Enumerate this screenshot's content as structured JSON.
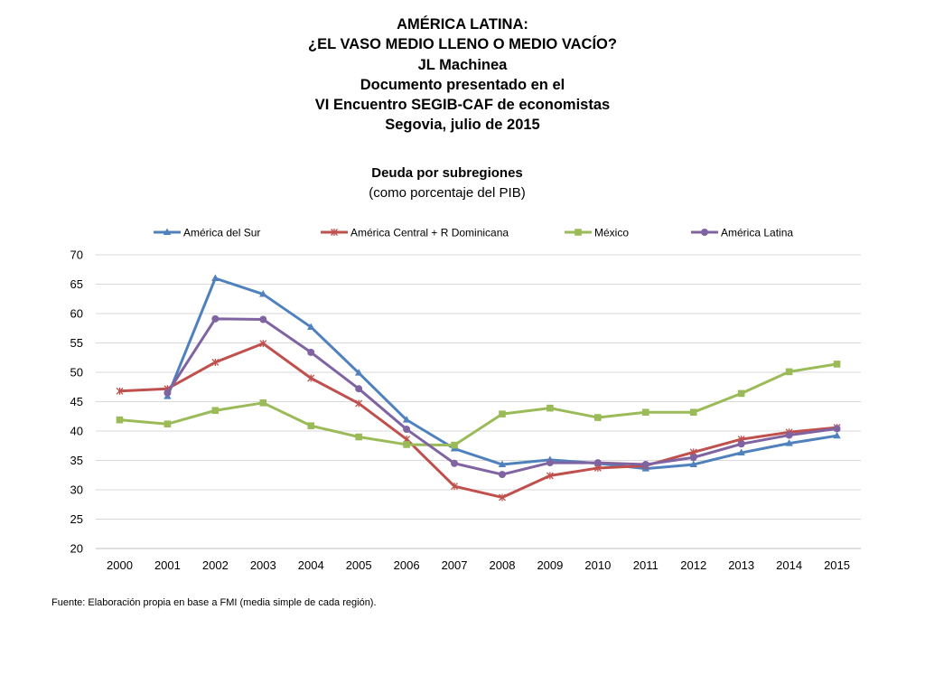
{
  "header": {
    "lines": [
      "AMÉRICA LATINA:",
      "¿EL VASO MEDIO LLENO O MEDIO VACÍO?",
      "JL Machinea",
      "Documento presentado en el",
      "VI Encuentro SEGIB-CAF de economistas",
      "Segovia, julio de 2015"
    ]
  },
  "chart_data": {
    "type": "line",
    "title": "Deuda por subregiones",
    "subtitle": "(como porcentaje del PIB)",
    "xlabel": "",
    "ylabel": "",
    "ylim": [
      20,
      70
    ],
    "yticks": [
      20,
      25,
      30,
      35,
      40,
      45,
      50,
      55,
      60,
      65,
      70
    ],
    "grid": true,
    "legend_position": "top",
    "categories": [
      "2000",
      "2001",
      "2002",
      "2003",
      "2004",
      "2005",
      "2006",
      "2007",
      "2008",
      "2009",
      "2010",
      "2011",
      "2012",
      "2013",
      "2014",
      "2015"
    ],
    "series": [
      {
        "name": "América del Sur",
        "color": "#4f81bd",
        "marker": "triangle",
        "values": [
          null,
          45.9,
          66.0,
          63.3,
          57.7,
          49.9,
          41.9,
          37.0,
          34.3,
          35.1,
          34.5,
          33.6,
          34.3,
          36.3,
          37.9,
          39.2
        ]
      },
      {
        "name": "América Central + R Dominicana",
        "color": "#c0504d",
        "marker": "x",
        "values": [
          46.8,
          47.2,
          51.7,
          54.9,
          49.0,
          44.7,
          38.6,
          30.6,
          28.7,
          32.4,
          33.7,
          34.1,
          36.4,
          38.6,
          39.8,
          40.6
        ]
      },
      {
        "name": "México",
        "color": "#9bbb59",
        "marker": "square",
        "values": [
          41.9,
          41.2,
          43.5,
          44.8,
          40.9,
          39.0,
          37.7,
          37.6,
          42.9,
          43.9,
          42.3,
          43.2,
          43.2,
          46.4,
          50.1,
          51.4
        ]
      },
      {
        "name": "América Latina",
        "color": "#8064a2",
        "marker": "circle",
        "values": [
          null,
          46.5,
          59.1,
          59.0,
          53.4,
          47.2,
          40.3,
          34.5,
          32.6,
          34.6,
          34.6,
          34.3,
          35.5,
          37.8,
          39.3,
          40.4
        ]
      }
    ]
  },
  "footer": {
    "source": "Fuente: Elaboración propia en base a FMI (media simple de cada región)."
  }
}
